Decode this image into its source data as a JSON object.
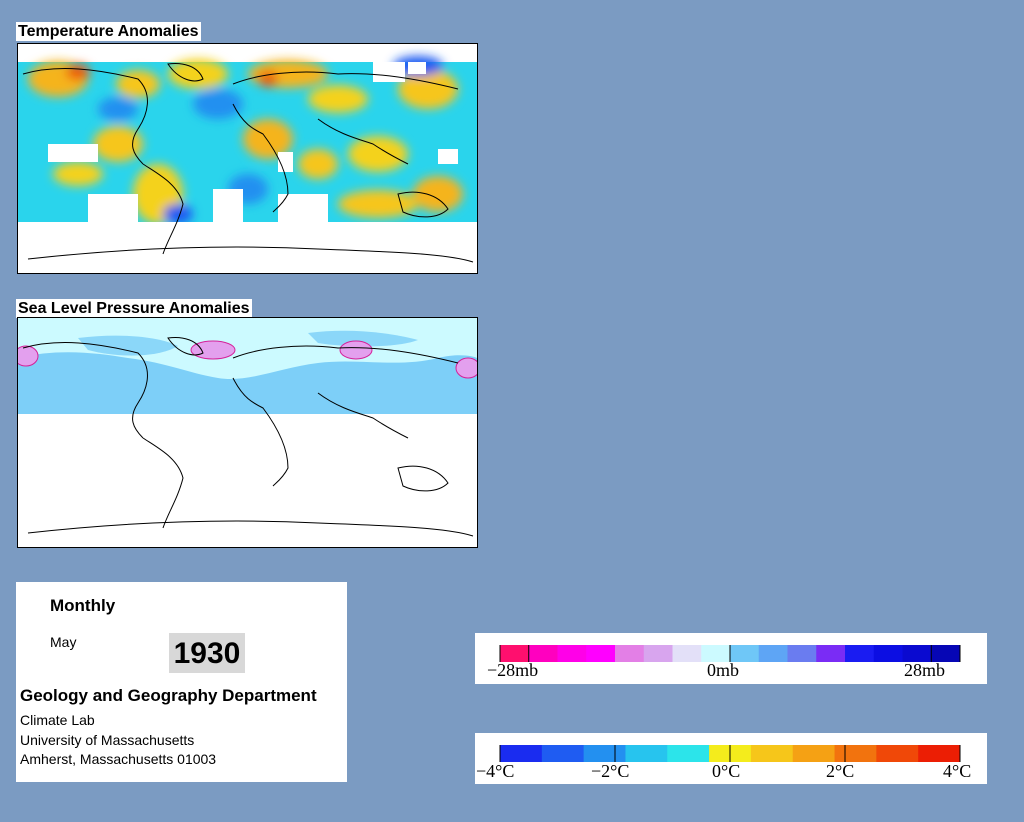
{
  "temperature_map": {
    "title": "Temperature Anomalies"
  },
  "pressure_map": {
    "title": "Sea Level Pressure Anomalies"
  },
  "info": {
    "mode": "Monthly",
    "month": "May",
    "year": "1930",
    "department": "Geology and Geography Department",
    "address_lines": [
      "Climate Lab",
      "University of Massachusetts",
      "Amherst, Massachusetts 01003"
    ]
  },
  "pressure_legend": {
    "colors": [
      "#ff0f6e",
      "#ff00bf",
      "#ff00e8",
      "#ff00ff",
      "#e37fe6",
      "#d8a5ee",
      "#e3e0f8",
      "#ccfaff",
      "#6fc7f7",
      "#5ea5f5",
      "#6a7cf0",
      "#7a2cf5",
      "#1a1cf2",
      "#0c0ee3",
      "#0a0ad0",
      "#0606b5"
    ],
    "labels": [
      "−28mb",
      "0mb",
      "28mb"
    ]
  },
  "temp_legend": {
    "colors": [
      "#1a2cf0",
      "#1f5cf2",
      "#2390f0",
      "#27c4ee",
      "#2ce4ea",
      "#f4ec1c",
      "#f6c61a",
      "#f5a114",
      "#f2730e",
      "#f04808",
      "#ec1e04"
    ],
    "labels": [
      "−4°C",
      "−2°C",
      "0°C",
      "2°C",
      "4°C"
    ]
  }
}
